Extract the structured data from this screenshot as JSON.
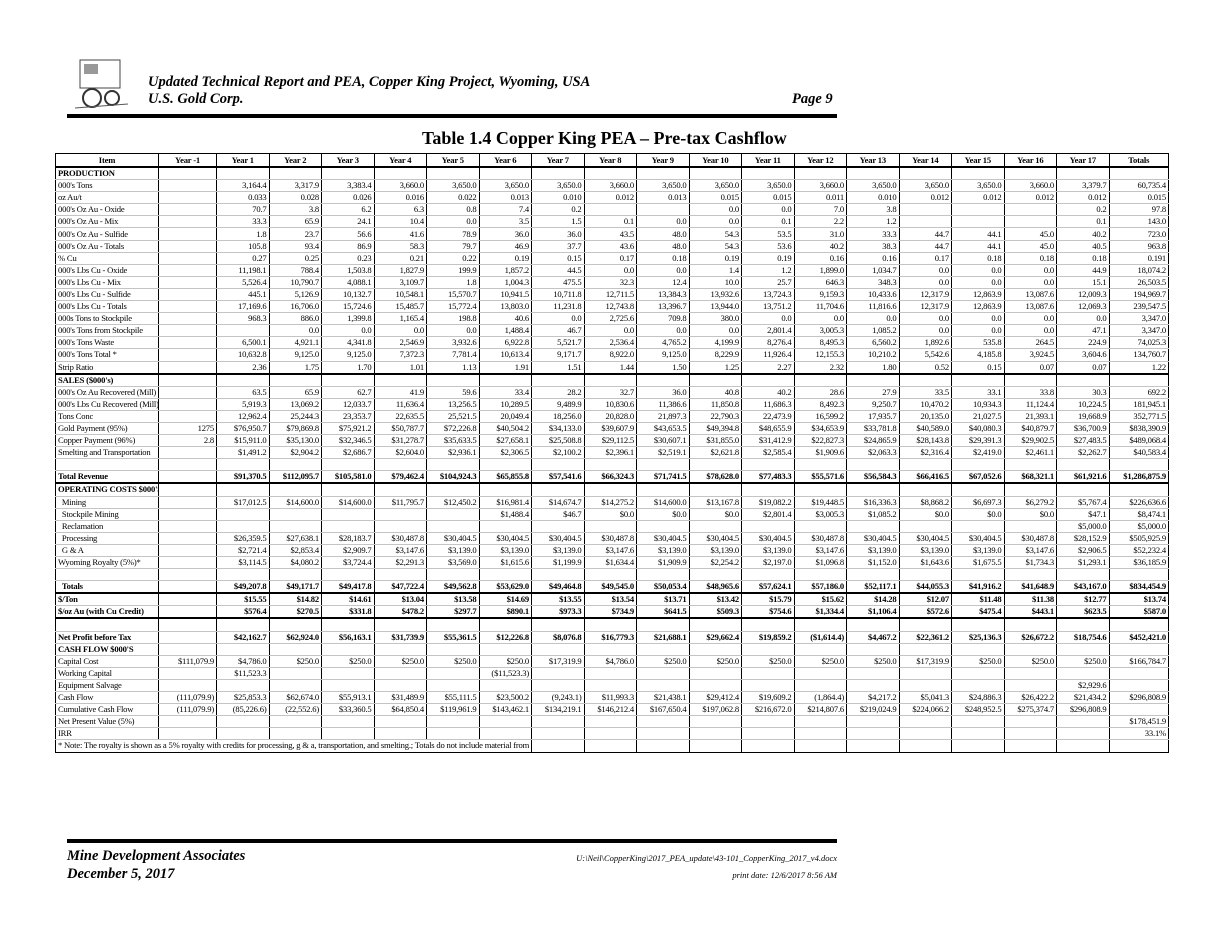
{
  "header": {
    "title_line1": "Updated Technical Report and PEA, Copper King Project, Wyoming, USA",
    "title_line2": "U.S. Gold Corp.",
    "page": "Page 9"
  },
  "table_title": "Table 1.4  Copper King PEA – Pre-tax Cashflow",
  "columns": [
    "Item",
    "Year -1",
    "Year 1",
    "Year 2",
    "Year 3",
    "Year 4",
    "Year 5",
    "Year 6",
    "Year 7",
    "Year 8",
    "Year 9",
    "Year 10",
    "Year 11",
    "Year 12",
    "Year 13",
    "Year 14",
    "Year 15",
    "Year 16",
    "Year 17",
    "Totals"
  ],
  "rows": [
    {
      "label": "PRODUCTION",
      "kind": "section"
    },
    {
      "label": "000's Tons",
      "values": [
        "",
        "3,164.4",
        "3,317.9",
        "3,383.4",
        "3,660.0",
        "3,650.0",
        "3,650.0",
        "3,650.0",
        "3,660.0",
        "3,650.0",
        "3,650.0",
        "3,650.0",
        "3,660.0",
        "3,650.0",
        "3,650.0",
        "3,650.0",
        "3,660.0",
        "3,379.7",
        "60,735.4"
      ]
    },
    {
      "label": "oz Au/t",
      "values": [
        "",
        "0.033",
        "0.028",
        "0.026",
        "0.016",
        "0.022",
        "0.013",
        "0.010",
        "0.012",
        "0.013",
        "0.015",
        "0.015",
        "0.011",
        "0.010",
        "0.012",
        "0.012",
        "0.012",
        "0.012",
        "0.015"
      ]
    },
    {
      "label": "000's Oz Au - Oxide",
      "values": [
        "",
        "70.7",
        "3.8",
        "6.2",
        "6.3",
        "0.8",
        "7.4",
        "0.2",
        "",
        "",
        "0.0",
        "0.0",
        "7.0",
        "3.8",
        "",
        "",
        "",
        "0.2",
        "97.8"
      ]
    },
    {
      "label": "000's Oz Au - Mix",
      "values": [
        "",
        "33.3",
        "65.9",
        "24.1",
        "10.4",
        "0.0",
        "3.5",
        "1.5",
        "0.1",
        "0.0",
        "0.0",
        "0.1",
        "2.2",
        "1.2",
        "",
        "",
        "",
        "0.1",
        "143.0"
      ]
    },
    {
      "label": "000's Oz Au - Sulfide",
      "values": [
        "",
        "1.8",
        "23.7",
        "56.6",
        "41.6",
        "78.9",
        "36.0",
        "36.0",
        "43.5",
        "48.0",
        "54.3",
        "53.5",
        "31.0",
        "33.3",
        "44.7",
        "44.1",
        "45.0",
        "40.2",
        "723.0"
      ]
    },
    {
      "label": "000's Oz Au - Totals",
      "values": [
        "",
        "105.8",
        "93.4",
        "86.9",
        "58.3",
        "79.7",
        "46.9",
        "37.7",
        "43.6",
        "48.0",
        "54.3",
        "53.6",
        "40.2",
        "38.3",
        "44.7",
        "44.1",
        "45.0",
        "40.5",
        "963.8"
      ]
    },
    {
      "label": "% Cu",
      "values": [
        "",
        "0.27",
        "0.25",
        "0.23",
        "0.21",
        "0.22",
        "0.19",
        "0.15",
        "0.17",
        "0.18",
        "0.19",
        "0.19",
        "0.16",
        "0.16",
        "0.17",
        "0.18",
        "0.18",
        "0.18",
        "0.191"
      ]
    },
    {
      "label": "000's Lbs Cu - Oxide",
      "values": [
        "",
        "11,198.1",
        "788.4",
        "1,503.8",
        "1,827.9",
        "199.9",
        "1,857.2",
        "44.5",
        "0.0",
        "0.0",
        "1.4",
        "1.2",
        "1,899.0",
        "1,034.7",
        "0.0",
        "0.0",
        "0.0",
        "44.9",
        "18,074.2"
      ]
    },
    {
      "label": "000's Lbs Cu - Mix",
      "values": [
        "",
        "5,526.4",
        "10,790.7",
        "4,088.1",
        "3,109.7",
        "1.8",
        "1,004.3",
        "475.5",
        "32.3",
        "12.4",
        "10.0",
        "25.7",
        "646.3",
        "348.3",
        "0.0",
        "0.0",
        "0.0",
        "15.1",
        "26,503.5"
      ]
    },
    {
      "label": "000's Lbs Cu - Sulfide",
      "values": [
        "",
        "445.1",
        "5,126.9",
        "10,132.7",
        "10,548.1",
        "15,570.7",
        "10,941.5",
        "10,711.8",
        "12,711.5",
        "13,384.3",
        "13,932.6",
        "13,724.3",
        "9,159.3",
        "10,433.6",
        "12,317.9",
        "12,863.9",
        "13,087.6",
        "12,009.3",
        "194,969.7"
      ]
    },
    {
      "label": "000's Lbs Cu - Totals",
      "values": [
        "",
        "17,169.6",
        "16,706.0",
        "15,724.6",
        "15,485.7",
        "15,772.4",
        "13,803.0",
        "11,231.8",
        "12,743.8",
        "13,396.7",
        "13,944.0",
        "13,751.2",
        "11,704.6",
        "11,816.6",
        "12,317.9",
        "12,863.9",
        "13,087.6",
        "12,069.3",
        "239,547.5"
      ]
    },
    {
      "label": "000s Tons to Stockpile",
      "values": [
        "",
        "968.3",
        "886.0",
        "1,399.8",
        "1,165.4",
        "198.8",
        "40.6",
        "0.0",
        "2,725.6",
        "709.8",
        "380.0",
        "0.0",
        "0.0",
        "0.0",
        "0.0",
        "0.0",
        "0.0",
        "0.0",
        "3,347.0"
      ]
    },
    {
      "label": "000's Tons from Stockpile",
      "values": [
        "",
        "",
        "0.0",
        "0.0",
        "0.0",
        "0.0",
        "1,488.4",
        "46.7",
        "0.0",
        "0.0",
        "0.0",
        "2,801.4",
        "3,005.3",
        "1,085.2",
        "0.0",
        "0.0",
        "0.0",
        "47.1",
        "3,347.0"
      ]
    },
    {
      "label": "000's Tons Waste",
      "values": [
        "",
        "6,500.1",
        "4,921.1",
        "4,341.8",
        "2,546.9",
        "3,932.6",
        "6,922.8",
        "5,521.7",
        "2,536.4",
        "4,765.2",
        "4,199.9",
        "8,276.4",
        "8,495.3",
        "6,560.2",
        "1,892.6",
        "535.8",
        "264.5",
        "224.9",
        "74,025.3"
      ]
    },
    {
      "label": "000's Tons Total *",
      "values": [
        "",
        "10,632.8",
        "9,125.0",
        "9,125.0",
        "7,372.3",
        "7,781.4",
        "10,613.4",
        "9,171.7",
        "8,922.0",
        "9,125.0",
        "8,229.9",
        "11,926.4",
        "12,155.3",
        "10,210.2",
        "5,542.6",
        "4,185.8",
        "3,924.5",
        "3,604.6",
        "134,760.7"
      ]
    },
    {
      "label": "Strip Ratio",
      "kind": "thick",
      "values": [
        "",
        "2.36",
        "1.75",
        "1.70",
        "1.01",
        "1.13",
        "1.91",
        "1.51",
        "1.44",
        "1.50",
        "1.25",
        "2.27",
        "2.32",
        "1.80",
        "0.52",
        "0.15",
        "0.07",
        "0.07",
        "1.22"
      ]
    },
    {
      "label": "SALES ($000's)",
      "kind": "section"
    },
    {
      "label": "000's Oz Au Recovered (Mill)",
      "values": [
        "",
        "63.5",
        "65.9",
        "62.7",
        "41.9",
        "59.6",
        "33.4",
        "28.2",
        "32.7",
        "36.0",
        "40.8",
        "40.2",
        "28.6",
        "27.9",
        "33.5",
        "33.1",
        "33.8",
        "30.3",
        "692.2"
      ]
    },
    {
      "label": "000's Lbs Cu Recovered (Mill)",
      "values": [
        "",
        "5,919.3",
        "13,069.2",
        "12,033.7",
        "11,636.4",
        "13,256.5",
        "10,289.5",
        "9,489.9",
        "10,830.6",
        "11,386.6",
        "11,850.8",
        "11,686.3",
        "8,492.3",
        "9,250.7",
        "10,470.2",
        "10,934.3",
        "11,124.4",
        "10,224.5",
        "181,945.1"
      ]
    },
    {
      "label": "Tons Conc",
      "values": [
        "",
        "12,962.4",
        "25,244.3",
        "23,353.7",
        "22,635.5",
        "25,521.5",
        "20,049.4",
        "18,256.0",
        "20,828.0",
        "21,897.3",
        "22,790.3",
        "22,473.9",
        "16,599.2",
        "17,935.7",
        "20,135.0",
        "21,027.5",
        "21,393.1",
        "19,668.9",
        "352,771.5"
      ]
    },
    {
      "label": "Gold Payment (95%)",
      "values": [
        "1275",
        "$76,950.7",
        "$79,869.8",
        "$75,921.2",
        "$50,787.7",
        "$72,226.8",
        "$40,504.2",
        "$34,133.0",
        "$39,607.9",
        "$43,653.5",
        "$49,394.8",
        "$48,655.9",
        "$34,653.9",
        "$33,781.8",
        "$40,589.0",
        "$40,080.3",
        "$40,879.7",
        "$36,700.9",
        "$838,390.9"
      ]
    },
    {
      "label": "Copper Payment (96%)",
      "values": [
        "2.8",
        "$15,911.0",
        "$35,130.0",
        "$32,346.5",
        "$31,278.7",
        "$35,633.5",
        "$27,658.1",
        "$25,508.8",
        "$29,112.5",
        "$30,607.1",
        "$31,855.0",
        "$31,412.9",
        "$22,827.3",
        "$24,865.9",
        "$28,143.8",
        "$29,391.3",
        "$29,902.5",
        "$27,483.5",
        "$489,068.4"
      ]
    },
    {
      "label": "Smelting and Transportation",
      "values": [
        "",
        "$1,491.2",
        "$2,904.2",
        "$2,686.7",
        "$2,604.0",
        "$2,936.1",
        "$2,306.5",
        "$2,100.2",
        "$2,396.1",
        "$2,519.1",
        "$2,621.8",
        "$2,585.4",
        "$1,909.6",
        "$2,063.3",
        "$2,316.4",
        "$2,419.0",
        "$2,461.1",
        "$2,262.7",
        "$40,583.4"
      ]
    },
    {
      "label": "",
      "kind": "blank"
    },
    {
      "label": "Total Revenue",
      "kind": "bold-thick",
      "values": [
        "",
        "$91,370.5",
        "$112,095.7",
        "$105,581.0",
        "$79,462.4",
        "$104,924.3",
        "$65,855.8",
        "$57,541.6",
        "$66,324.3",
        "$71,741.5",
        "$78,628.0",
        "$77,483.3",
        "$55,571.6",
        "$56,584.3",
        "$66,416.5",
        "$67,052.6",
        "$68,321.1",
        "$61,921.6",
        "$1,286,875.9"
      ]
    },
    {
      "label": "OPERATING COSTS $000'S",
      "kind": "section"
    },
    {
      "label": "  Mining",
      "values": [
        "",
        "$17,012.5",
        "$14,600.0",
        "$14,600.0",
        "$11,795.7",
        "$12,450.2",
        "$16,981.4",
        "$14,674.7",
        "$14,275.2",
        "$14,600.0",
        "$13,167.8",
        "$19,082.2",
        "$19,448.5",
        "$16,336.3",
        "$8,868.2",
        "$6,697.3",
        "$6,279.2",
        "$5,767.4",
        "$226,636.6"
      ]
    },
    {
      "label": "  Stockpile Mining",
      "values": [
        "",
        "",
        "",
        "",
        "",
        "",
        "$1,488.4",
        "$46.7",
        "$0.0",
        "$0.0",
        "$0.0",
        "$2,801.4",
        "$3,005.3",
        "$1,085.2",
        "$0.0",
        "$0.0",
        "$0.0",
        "$47.1",
        "$8,474.1"
      ]
    },
    {
      "label": "  Reclamation",
      "values": [
        "",
        "",
        "",
        "",
        "",
        "",
        "",
        "",
        "",
        "",
        "",
        "",
        "",
        "",
        "",
        "",
        "",
        "$5,000.0",
        "$5,000.0"
      ]
    },
    {
      "label": "  Processing",
      "values": [
        "",
        "$26,359.5",
        "$27,638.1",
        "$28,183.7",
        "$30,487.8",
        "$30,404.5",
        "$30,404.5",
        "$30,404.5",
        "$30,487.8",
        "$30,404.5",
        "$30,404.5",
        "$30,404.5",
        "$30,487.8",
        "$30,404.5",
        "$30,404.5",
        "$30,404.5",
        "$30,487.8",
        "$28,152.9",
        "$505,925.9"
      ]
    },
    {
      "label": "  G & A",
      "values": [
        "",
        "$2,721.4",
        "$2,853.4",
        "$2,909.7",
        "$3,147.6",
        "$3,139.0",
        "$3,139.0",
        "$3,139.0",
        "$3,147.6",
        "$3,139.0",
        "$3,139.0",
        "$3,139.0",
        "$3,147.6",
        "$3,139.0",
        "$3,139.0",
        "$3,139.0",
        "$3,147.6",
        "$2,906.5",
        "$52,232.4"
      ]
    },
    {
      "label": "Wyoming Royalty (5%)*",
      "values": [
        "",
        "$3,114.5",
        "$4,080.2",
        "$3,724.4",
        "$2,291.3",
        "$3,569.0",
        "$1,615.6",
        "$1,199.9",
        "$1,634.4",
        "$1,909.9",
        "$2,254.2",
        "$2,197.0",
        "$1,096.8",
        "$1,152.0",
        "$1,643.6",
        "$1,675.5",
        "$1,734.3",
        "$1,293.1",
        "$36,185.9"
      ]
    },
    {
      "label": "",
      "kind": "blank"
    },
    {
      "label": "  Totals",
      "kind": "bold-thick",
      "values": [
        "",
        "$49,207.8",
        "$49,171.7",
        "$49,417.8",
        "$47,722.4",
        "$49,562.8",
        "$53,629.0",
        "$49,464.8",
        "$49,545.0",
        "$50,053.4",
        "$48,965.6",
        "$57,624.1",
        "$57,186.0",
        "$52,117.1",
        "$44,055.3",
        "$41,916.2",
        "$41,648.9",
        "$43,167.0",
        "$834,454.9"
      ]
    },
    {
      "label": "$/Ton",
      "kind": "bold",
      "values": [
        "",
        "$15.55",
        "$14.82",
        "$14.61",
        "$13.04",
        "$13.58",
        "$14.69",
        "$13.55",
        "$13.54",
        "$13.71",
        "$13.42",
        "$15.79",
        "$15.62",
        "$14.28",
        "$12.07",
        "$11.48",
        "$11.38",
        "$12.77",
        "$13.74"
      ]
    },
    {
      "label": "$/oz Au (with Cu Credit)",
      "kind": "bold-thick",
      "values": [
        "",
        "$576.4",
        "$270.5",
        "$331.8",
        "$478.2",
        "$297.7",
        "$890.1",
        "$973.3",
        "$734.9",
        "$641.5",
        "$509.3",
        "$754.6",
        "$1,334.4",
        "$1,106.4",
        "$572.6",
        "$475.4",
        "$443.1",
        "$623.5",
        "$587.0"
      ]
    },
    {
      "label": "",
      "kind": "blank"
    },
    {
      "label": "Net Profit before Tax",
      "kind": "bold",
      "values": [
        "",
        "$42,162.7",
        "$62,924.0",
        "$56,163.1",
        "$31,739.9",
        "$55,361.5",
        "$12,226.8",
        "$8,076.8",
        "$16,779.3",
        "$21,688.1",
        "$29,662.4",
        "$19,859.2",
        "($1,614.4)",
        "$4,467.2",
        "$22,361.2",
        "$25,136.3",
        "$26,672.2",
        "$18,754.6",
        "$452,421.0"
      ]
    },
    {
      "label": "CASH FLOW $000'S",
      "kind": "section"
    },
    {
      "label": "Capital Cost",
      "values": [
        "$111,079.9",
        "$4,786.0",
        "$250.0",
        "$250.0",
        "$250.0",
        "$250.0",
        "$250.0",
        "$17,319.9",
        "$4,786.0",
        "$250.0",
        "$250.0",
        "$250.0",
        "$250.0",
        "$250.0",
        "$17,319.9",
        "$250.0",
        "$250.0",
        "$250.0",
        "$166,784.7"
      ]
    },
    {
      "label": "Working Capital",
      "values": [
        "",
        "$11,523.3",
        "",
        "",
        "",
        "",
        "($11,523.3)",
        "",
        "",
        "",
        "",
        "",
        "",
        "",
        "",
        "",
        "",
        "",
        ""
      ]
    },
    {
      "label": "Equipment Salvage",
      "values": [
        "",
        "",
        "",
        "",
        "",
        "",
        "",
        "",
        "",
        "",
        "",
        "",
        "",
        "",
        "",
        "",
        "",
        "$2,929.6",
        ""
      ]
    },
    {
      "label": "Cash Flow",
      "values": [
        "(111,079.9)",
        "$25,853.3",
        "$62,674.0",
        "$55,913.1",
        "$31,489.9",
        "$55,111.5",
        "$23,500.2",
        "(9,243.1)",
        "$11,993.3",
        "$21,438.1",
        "$29,412.4",
        "$19,609.2",
        "(1,864.4)",
        "$4,217.2",
        "$5,041.3",
        "$24,886.3",
        "$26,422.2",
        "$21,434.2",
        "$296,808.9"
      ]
    },
    {
      "label": "Cumulative Cash Flow",
      "values": [
        "(111,079.9)",
        "(85,226.6)",
        "(22,552.6)",
        "$33,360.5",
        "$64,850.4",
        "$119,961.9",
        "$143,462.1",
        "$134,219.1",
        "$146,212.4",
        "$167,650.4",
        "$197,062.8",
        "$216,672.0",
        "$214,807.6",
        "$219,024.9",
        "$224,066.2",
        "$248,952.5",
        "$275,374.7",
        "$296,808.9",
        ""
      ]
    },
    {
      "label": "Net Present Value (5%)",
      "values": [
        "",
        "",
        "",
        "",
        "",
        "",
        "",
        "",
        "",
        "",
        "",
        "",
        "",
        "",
        "",
        "",
        "",
        "",
        "$178,451.9"
      ]
    },
    {
      "label": "IRR",
      "values": [
        "",
        "",
        "",
        "",
        "",
        "",
        "",
        "",
        "",
        "",
        "",
        "",
        "",
        "",
        "",
        "",
        "",
        "",
        "33.1%"
      ]
    }
  ],
  "note": "* Note:  The royalty is shown as a 5% royalty with credits for processing, g & a, transportation, and smelting.; Totals do not include material from stockpile",
  "footer": {
    "company": "Mine Development Associates",
    "date": "December 5, 2017",
    "path": "U:\\Neil\\CopperKing\\2017_PEA_update\\43-101_CopperKing_2017_v4.docx",
    "print_date": "print date: 12/6/2017 8:56 AM"
  }
}
